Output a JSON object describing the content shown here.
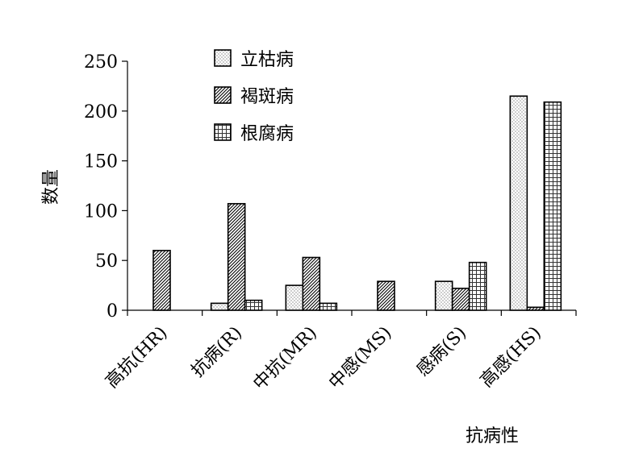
{
  "chart_data": {
    "type": "bar",
    "title": "",
    "xlabel": "抗病性",
    "ylabel": "数量",
    "ylim": [
      0,
      250
    ],
    "yticks": [
      0,
      50,
      100,
      150,
      200,
      250
    ],
    "categories": [
      "高抗(HR)",
      "抗病(R)",
      "中抗(MR)",
      "中感(MS)",
      "感病(S)",
      "高感(HS)"
    ],
    "series": [
      {
        "name": "立枯病",
        "values": [
          0,
          7,
          25,
          0,
          29,
          215
        ],
        "pattern": "dots"
      },
      {
        "name": "褐斑病",
        "values": [
          60,
          107,
          53,
          29,
          22,
          3
        ],
        "pattern": "diagonal"
      },
      {
        "name": "根腐病",
        "values": [
          0,
          10,
          7,
          0,
          48,
          209
        ],
        "pattern": "grid"
      }
    ],
    "grid": false,
    "legend_position": "top-center"
  }
}
